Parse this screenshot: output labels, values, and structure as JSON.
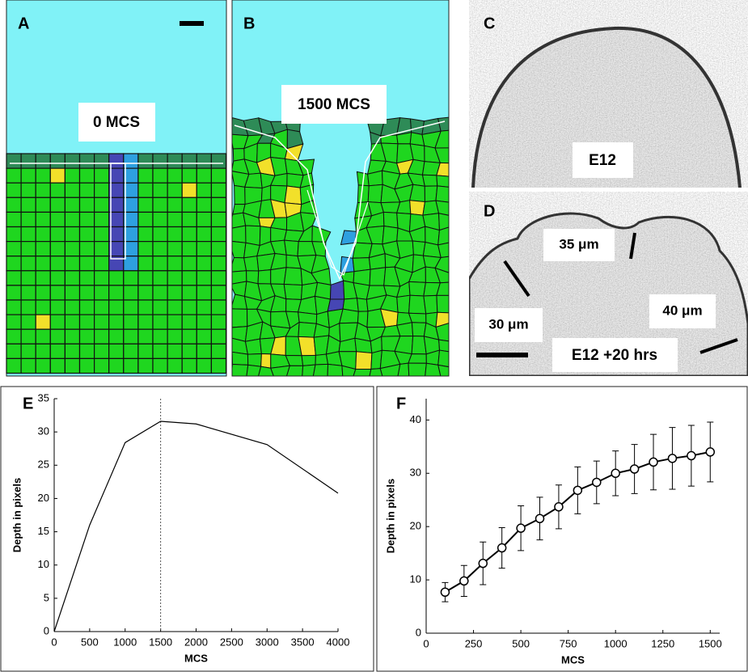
{
  "panels": {
    "A": {
      "label": "A",
      "caption": "0 MCS"
    },
    "B": {
      "label": "B",
      "caption": "1500 MCS"
    },
    "C": {
      "label": "C",
      "caption": "E12"
    },
    "D": {
      "label": "D",
      "caption": "E12 +20 hrs",
      "measures": [
        "35 μm",
        "30 μm",
        "40 μm"
      ]
    }
  },
  "chart_data": [
    {
      "type": "line",
      "panel_label": "E",
      "xlabel": "MCS",
      "ylabel": "Depth in pixels",
      "x": [
        0,
        500,
        1000,
        1500,
        2000,
        3000,
        4000
      ],
      "series": [
        {
          "values": [
            0,
            16,
            28.4,
            31.6,
            31.2,
            28.1,
            20.8
          ],
          "color": "#000000"
        }
      ],
      "xlim": [
        0,
        4000
      ],
      "xticks": [
        0,
        500,
        1000,
        1500,
        2000,
        2500,
        3000,
        3500,
        4000
      ],
      "ylim": [
        0,
        35
      ],
      "yticks": [
        0,
        5,
        10,
        15,
        20,
        25,
        30,
        35
      ],
      "vline": 1500
    },
    {
      "type": "errorbar",
      "panel_label": "F",
      "xlabel": "MCS",
      "ylabel": "Depth in pixels",
      "x": [
        100,
        200,
        300,
        400,
        500,
        600,
        700,
        800,
        900,
        1000,
        1100,
        1200,
        1300,
        1400,
        1500
      ],
      "series": [
        {
          "values": [
            7.7,
            9.8,
            13.1,
            16.0,
            19.7,
            21.5,
            23.7,
            26.8,
            28.3,
            30.0,
            30.8,
            32.1,
            32.8,
            33.3,
            34.0
          ],
          "errors": [
            1.8,
            2.9,
            4.0,
            3.8,
            4.2,
            4.0,
            4.1,
            4.4,
            4.0,
            4.2,
            4.6,
            5.2,
            5.8,
            5.7,
            5.6
          ],
          "color": "#000000"
        }
      ],
      "marker": "circle",
      "xlim": [
        0,
        1550
      ],
      "xticks": [
        0,
        250,
        500,
        750,
        1000,
        1250,
        1500
      ],
      "ylim": [
        0,
        44
      ],
      "yticks": [
        0,
        10,
        20,
        30,
        40
      ]
    }
  ]
}
